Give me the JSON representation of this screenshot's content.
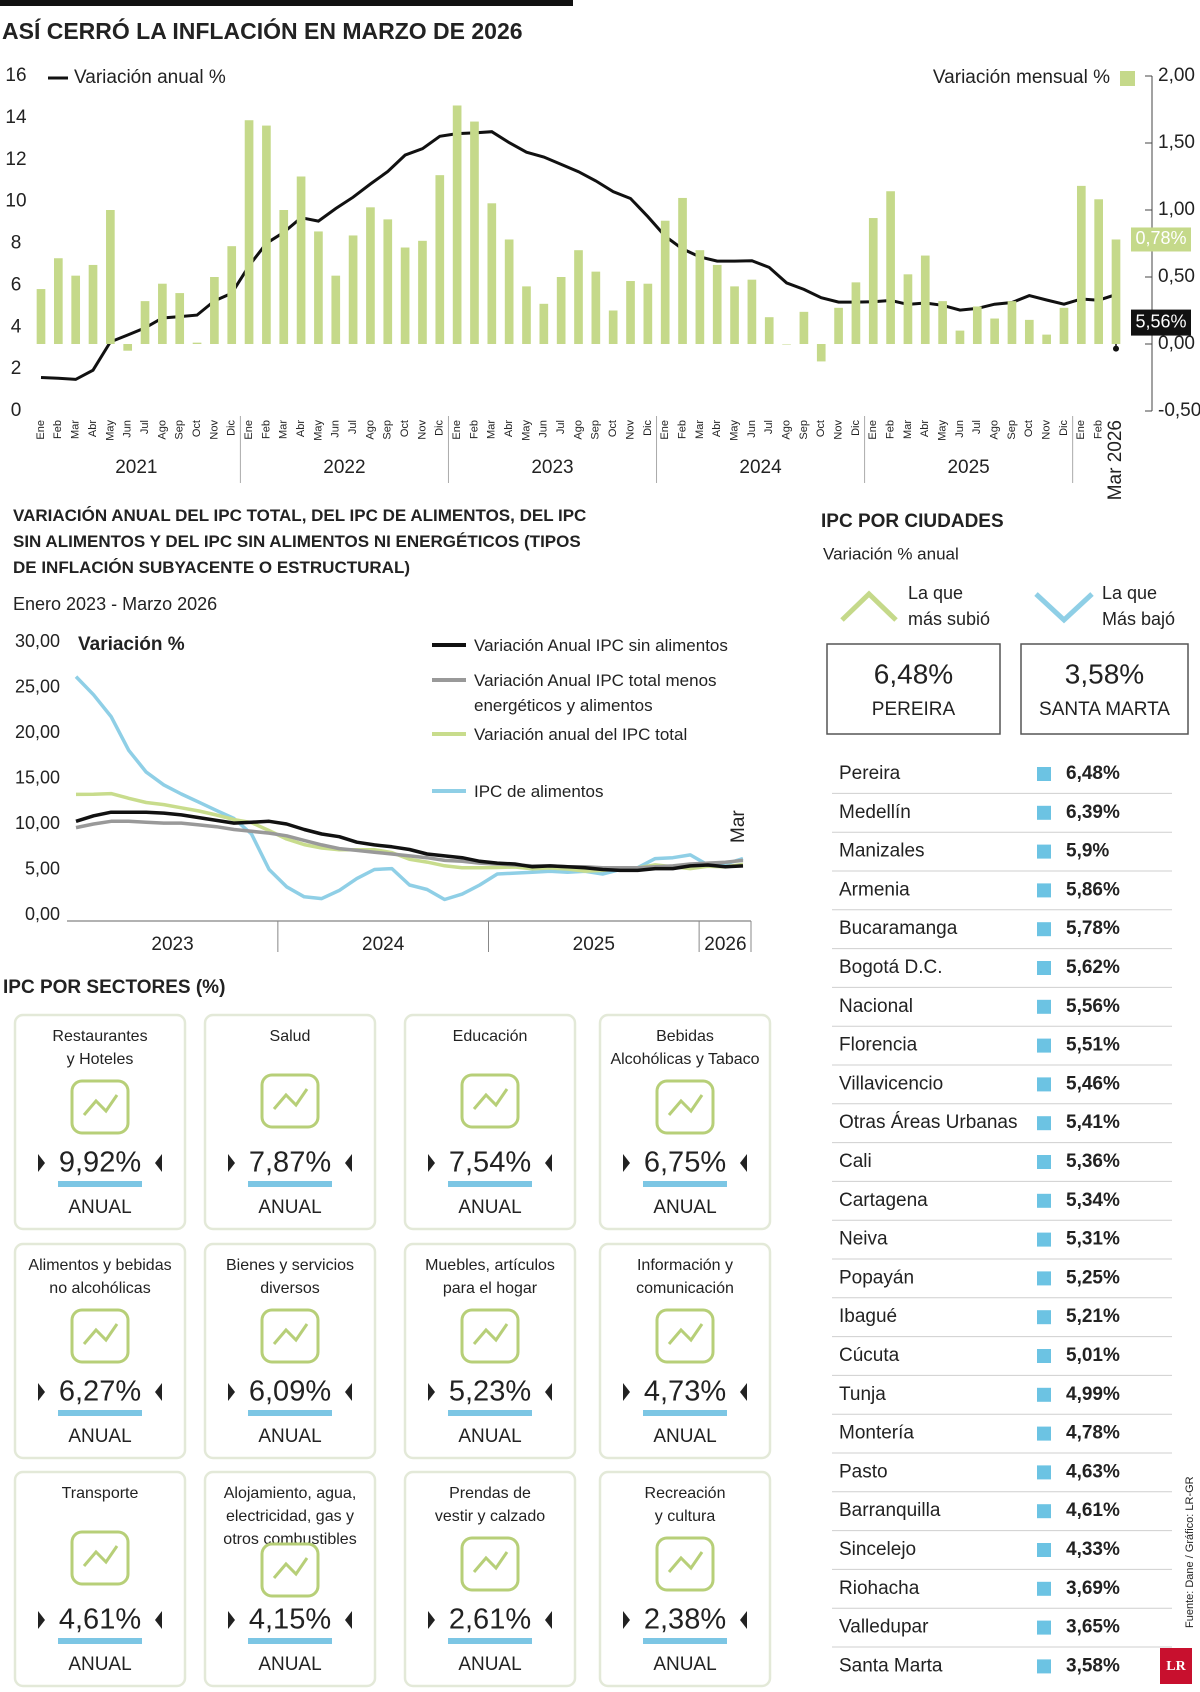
{
  "chart_data": [
    {
      "type": "combo",
      "title": "ASÍ CERRÓ LA INFLACIÓN EN MARZO DE 2026",
      "categories": [
        "Ene",
        "Feb",
        "Mar",
        "Abr",
        "May",
        "Jun",
        "Jul",
        "Ago",
        "Sep",
        "Oct",
        "Nov",
        "Dic",
        "Ene",
        "Feb",
        "Mar",
        "Abr",
        "May",
        "Jun",
        "Jul",
        "Ago",
        "Sep",
        "Oct",
        "Nov",
        "Dic",
        "Ene",
        "Feb",
        "Mar",
        "Abr",
        "May",
        "Jun",
        "Jul",
        "Ago",
        "Sep",
        "Oct",
        "Nov",
        "Dic",
        "Ene",
        "Feb",
        "Mar",
        "Abr",
        "May",
        "Jun",
        "Jul",
        "Ago",
        "Sep",
        "Oct",
        "Nov",
        "Dic",
        "Ene",
        "Feb",
        "Mar",
        "Abr",
        "May",
        "Jun",
        "Jul",
        "Ago",
        "Sep",
        "Oct",
        "Nov",
        "Dic",
        "Ene",
        "Feb",
        "Mar 2026"
      ],
      "year_labels": [
        "2021",
        "2022",
        "2023",
        "2024",
        "2025"
      ],
      "series": [
        {
          "name": "Variación anual %",
          "type": "line",
          "color": "#111111",
          "values": [
            1.6,
            1.56,
            1.51,
            1.95,
            3.3,
            3.63,
            3.97,
            4.44,
            4.51,
            4.58,
            5.26,
            5.62,
            6.94,
            8.01,
            8.53,
            9.23,
            9.07,
            9.67,
            10.21,
            10.84,
            11.44,
            12.22,
            12.53,
            13.12,
            13.25,
            13.28,
            13.34,
            12.82,
            12.36,
            12.13,
            11.78,
            11.43,
            10.99,
            10.48,
            10.15,
            9.28,
            8.35,
            7.74,
            7.36,
            7.16,
            7.16,
            7.18,
            6.86,
            6.12,
            5.81,
            5.41,
            5.2,
            5.2,
            5.22,
            5.28,
            5.09,
            5.16,
            5.05,
            4.82,
            4.9,
            5.1,
            5.18,
            5.51,
            5.3,
            5.1,
            5.35,
            5.29,
            5.56
          ],
          "value_labels": [
            null,
            null,
            null,
            null,
            null,
            null,
            null,
            null,
            null,
            null,
            null,
            null,
            null,
            null,
            null,
            null,
            null,
            null,
            null,
            null,
            null,
            null,
            null,
            null,
            null,
            null,
            null,
            null,
            null,
            null,
            null,
            null,
            null,
            null,
            null,
            null,
            null,
            null,
            null,
            null,
            null,
            null,
            null,
            null,
            null,
            null,
            null,
            null,
            null,
            null,
            null,
            null,
            null,
            null,
            null,
            null,
            null,
            null,
            null,
            null,
            null,
            null,
            "5,56%"
          ]
        },
        {
          "name": "Variación mensual %",
          "type": "bar",
          "axis": "y2",
          "color": "#c5d98a",
          "values": [
            0.41,
            0.64,
            0.51,
            0.59,
            1.0,
            -0.05,
            0.32,
            0.45,
            0.38,
            0.01,
            0.5,
            0.73,
            1.67,
            1.63,
            1.0,
            1.25,
            0.84,
            0.51,
            0.81,
            1.02,
            0.93,
            0.72,
            0.77,
            1.26,
            1.78,
            1.66,
            1.05,
            0.78,
            0.43,
            0.3,
            0.5,
            0.7,
            0.54,
            0.25,
            0.47,
            0.45,
            0.92,
            1.09,
            0.7,
            0.59,
            0.43,
            0.48,
            0.2,
            0.0,
            0.24,
            -0.13,
            0.27,
            0.46,
            0.94,
            1.14,
            0.52,
            0.66,
            0.32,
            0.1,
            0.28,
            0.19,
            0.32,
            0.18,
            0.07,
            0.27,
            1.18,
            1.08,
            0.78
          ],
          "value_labels": [
            null,
            null,
            null,
            null,
            null,
            null,
            null,
            null,
            null,
            null,
            null,
            null,
            null,
            null,
            null,
            null,
            null,
            null,
            null,
            null,
            null,
            null,
            null,
            null,
            null,
            null,
            null,
            null,
            null,
            null,
            null,
            null,
            null,
            null,
            null,
            null,
            null,
            null,
            null,
            null,
            null,
            null,
            null,
            null,
            null,
            null,
            null,
            null,
            null,
            null,
            null,
            null,
            null,
            null,
            null,
            null,
            null,
            null,
            null,
            null,
            null,
            null,
            "0,78%"
          ]
        }
      ],
      "ylim": [
        0,
        16
      ],
      "yticks": [
        0,
        2,
        4,
        6,
        8,
        10,
        12,
        14,
        16
      ],
      "y2lim": [
        -0.5,
        2
      ],
      "y2ticks": [
        {
          "value": -0.5,
          "label": "-0,50"
        },
        {
          "value": 0,
          "label": "0,00"
        },
        {
          "value": 0.5,
          "label": "0,50"
        },
        {
          "value": 1,
          "label": "1,00"
        },
        {
          "value": 1.5,
          "label": "1,50"
        },
        {
          "value": 2,
          "label": "2,00"
        }
      ]
    },
    {
      "type": "line",
      "title": "VARIACIÓN ANUAL DEL IPC TOTAL, DEL IPC DE ALIMENTOS, DEL IPC SIN ALIMENTOS Y DEL IPC SIN ALIMENTOS NI ENERGÉTICOS (TIPOS DE INFLACIÓN SUBYACENTE O ESTRUCTURAL)",
      "subtitle": "Enero 2023 - Marzo 2026",
      "ylabel": "Variación %",
      "categories": [
        null,
        null,
        null,
        null,
        null,
        null,
        null,
        null,
        null,
        null,
        null,
        null,
        null,
        null,
        null,
        null,
        null,
        null,
        null,
        null,
        null,
        null,
        null,
        null,
        null,
        null,
        null,
        null,
        null,
        null,
        null,
        null,
        null,
        null,
        null,
        null,
        null,
        null,
        "Mar"
      ],
      "year_labels": [
        "2023",
        "2024",
        "2025",
        "2026"
      ],
      "series": [
        {
          "name": "Variación Anual IPC sin alimentos",
          "color": "#111111",
          "values": [
            10.3,
            10.9,
            11.3,
            11.3,
            11.3,
            11.2,
            11.0,
            10.7,
            10.4,
            10.1,
            10.2,
            10.3,
            10.0,
            9.4,
            8.9,
            8.6,
            8.0,
            7.7,
            7.5,
            7.2,
            6.7,
            6.5,
            6.3,
            5.9,
            5.7,
            5.6,
            5.3,
            5.4,
            5.3,
            5.2,
            5.0,
            4.9,
            4.9,
            5.1,
            5.1,
            5.4,
            5.5,
            5.3,
            5.4
          ]
        },
        {
          "name": "Variación Anual IPC total menos energéticos y alimentos",
          "color": "#999999",
          "values": [
            9.6,
            10.0,
            10.3,
            10.3,
            10.2,
            10.1,
            10.1,
            9.9,
            9.7,
            9.4,
            9.2,
            9.0,
            8.7,
            8.2,
            7.7,
            7.3,
            7.1,
            6.9,
            6.7,
            6.5,
            6.3,
            6.0,
            5.9,
            5.7,
            5.6,
            5.5,
            5.4,
            5.4,
            5.3,
            5.3,
            5.2,
            5.2,
            5.2,
            5.3,
            5.4,
            5.6,
            5.7,
            5.8,
            6.0
          ]
        },
        {
          "name": "Variación anual del IPC total",
          "color": "#c8dc8c",
          "values": [
            13.25,
            13.28,
            13.34,
            12.82,
            12.36,
            12.13,
            11.78,
            11.43,
            10.99,
            10.48,
            10.15,
            9.28,
            8.35,
            7.74,
            7.36,
            7.16,
            7.16,
            7.18,
            6.86,
            6.12,
            5.81,
            5.41,
            5.2,
            5.2,
            5.22,
            5.28,
            5.09,
            5.16,
            5.05,
            4.82,
            4.9,
            5.1,
            5.18,
            5.51,
            5.3,
            5.1,
            5.35,
            5.29,
            5.56
          ]
        },
        {
          "name": "IPC de alimentos",
          "color": "#8fcfe6",
          "values": [
            26.2,
            24.2,
            21.8,
            18.1,
            15.7,
            14.3,
            13.3,
            12.4,
            11.5,
            10.6,
            8.9,
            5.0,
            3.1,
            2.0,
            1.8,
            2.7,
            4.0,
            5.0,
            5.1,
            3.3,
            2.8,
            1.7,
            2.3,
            3.3,
            4.5,
            4.6,
            4.7,
            4.8,
            4.7,
            4.8,
            4.5,
            5.0,
            5.2,
            6.2,
            6.3,
            6.6,
            5.5,
            5.6,
            6.2
          ]
        }
      ],
      "ylim": [
        0,
        30
      ],
      "yticks": [
        {
          "value": 0,
          "label": "0,00"
        },
        {
          "value": 5,
          "label": "5,00"
        },
        {
          "value": 10,
          "label": "10,00"
        },
        {
          "value": 15,
          "label": "15,00"
        },
        {
          "value": 20,
          "label": "20,00"
        },
        {
          "value": 25,
          "label": "25,00"
        },
        {
          "value": 30,
          "label": "30,00"
        }
      ]
    }
  ],
  "sectors": {
    "title": "IPC POR SECTORES (%)",
    "items": [
      {
        "name": [
          "Restaurantes",
          "y Hoteles"
        ],
        "value": "9,92%",
        "period": "ANUAL"
      },
      {
        "name": [
          "Salud"
        ],
        "value": "7,87%",
        "period": "ANUAL"
      },
      {
        "name": [
          "Educación"
        ],
        "value": "7,54%",
        "period": "ANUAL"
      },
      {
        "name": [
          "Bebidas",
          "Alcohólicas y Tabaco"
        ],
        "value": "6,75%",
        "period": "ANUAL"
      },
      {
        "name": [
          "Alimentos y bebidas",
          "no alcohólicas"
        ],
        "value": "6,27%",
        "period": "ANUAL"
      },
      {
        "name": [
          "Bienes y servicios",
          "diversos"
        ],
        "value": "6,09%",
        "period": "ANUAL"
      },
      {
        "name": [
          "Muebles, artículos",
          "para el hogar"
        ],
        "value": "5,23%",
        "period": "ANUAL"
      },
      {
        "name": [
          "Información y",
          "comunicación"
        ],
        "value": "4,73%",
        "period": "ANUAL"
      },
      {
        "name": [
          "Transporte"
        ],
        "value": "4,61%",
        "period": "ANUAL"
      },
      {
        "name": [
          "Alojamiento, agua,",
          "electricidad, gas y",
          "otros combustibles"
        ],
        "value": "4,15%",
        "period": "ANUAL"
      },
      {
        "name": [
          "Prendas de",
          "vestir y calzado"
        ],
        "value": "2,61%",
        "period": "ANUAL"
      },
      {
        "name": [
          "Recreación",
          "y cultura"
        ],
        "value": "2,38%",
        "period": "ANUAL"
      }
    ]
  },
  "cities": {
    "title": "IPC POR CIUDADES",
    "subtitle": "Variación % anual",
    "highest": {
      "caption": [
        "La que",
        "más subió"
      ],
      "value": "6,48%",
      "city": "PEREIRA"
    },
    "lowest": {
      "caption": [
        "La que",
        "Más bajó"
      ],
      "value": "3,58%",
      "city": "SANTA MARTA"
    },
    "rows": [
      [
        "Pereira",
        "6,48%"
      ],
      [
        "Medellín",
        "6,39%"
      ],
      [
        "Manizales",
        "5,9%"
      ],
      [
        "Armenia",
        "5,86%"
      ],
      [
        "Bucaramanga",
        "5,78%"
      ],
      [
        "Bogotá D.C.",
        "5,62%"
      ],
      [
        "Nacional",
        "5,56%"
      ],
      [
        "Florencia",
        "5,51%"
      ],
      [
        "Villavicencio",
        "5,46%"
      ],
      [
        "Otras Áreas Urbanas",
        "5,41%"
      ],
      [
        "Cali",
        "5,36%"
      ],
      [
        "Cartagena",
        "5,34%"
      ],
      [
        "Neiva",
        "5,31%"
      ],
      [
        "Popayán",
        "5,25%"
      ],
      [
        "Ibagué",
        "5,21%"
      ],
      [
        "Cúcuta",
        "5,01%"
      ],
      [
        "Tunja",
        "4,99%"
      ],
      [
        "Montería",
        "4,78%"
      ],
      [
        "Pasto",
        "4,63%"
      ],
      [
        "Barranquilla",
        "4,61%"
      ],
      [
        "Sincelejo",
        "4,33%"
      ],
      [
        "Riohacha",
        "3,69%"
      ],
      [
        "Valledupar",
        "3,65%"
      ],
      [
        "Santa Marta",
        "3,58%"
      ]
    ]
  },
  "source": "Fuente: Dane / Gráfico: LR-GR",
  "logo": "LR"
}
